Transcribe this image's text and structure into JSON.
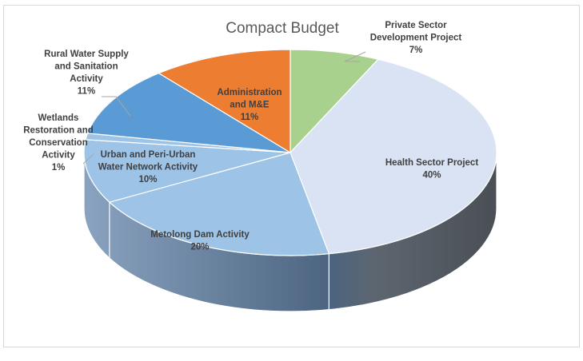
{
  "chart_data": {
    "type": "pie",
    "title": "Compact Budget",
    "slices": [
      {
        "label_lines": [
          "Private Sector",
          "Development Project"
        ],
        "pct_text": "7%",
        "value": 7,
        "color": "#a9d18e"
      },
      {
        "label_lines": [
          "Health Sector Project"
        ],
        "pct_text": "40%",
        "value": 40,
        "color": "#dae3f3"
      },
      {
        "label_lines": [
          "Metolong Dam Activity"
        ],
        "pct_text": "20%",
        "value": 20,
        "color": "#9dc3e6"
      },
      {
        "label_lines": [
          "Urban and Peri-Urban",
          "Water Network Activity"
        ],
        "pct_text": "10%",
        "value": 10,
        "color": "#9dc3e6"
      },
      {
        "label_lines": [
          "Wetlands",
          "Restoration and",
          "Conservation",
          "Activity"
        ],
        "pct_text": "1%",
        "value": 1,
        "color": "#9dc3e6"
      },
      {
        "label_lines": [
          "Rural Water Supply",
          "and Sanitation",
          "Activity"
        ],
        "pct_text": "11%",
        "value": 11,
        "color": "#5b9bd5"
      },
      {
        "label_lines": [
          "Administration",
          "and M&E"
        ],
        "pct_text": "11%",
        "value": 11,
        "color": "#ed7d31"
      }
    ]
  }
}
